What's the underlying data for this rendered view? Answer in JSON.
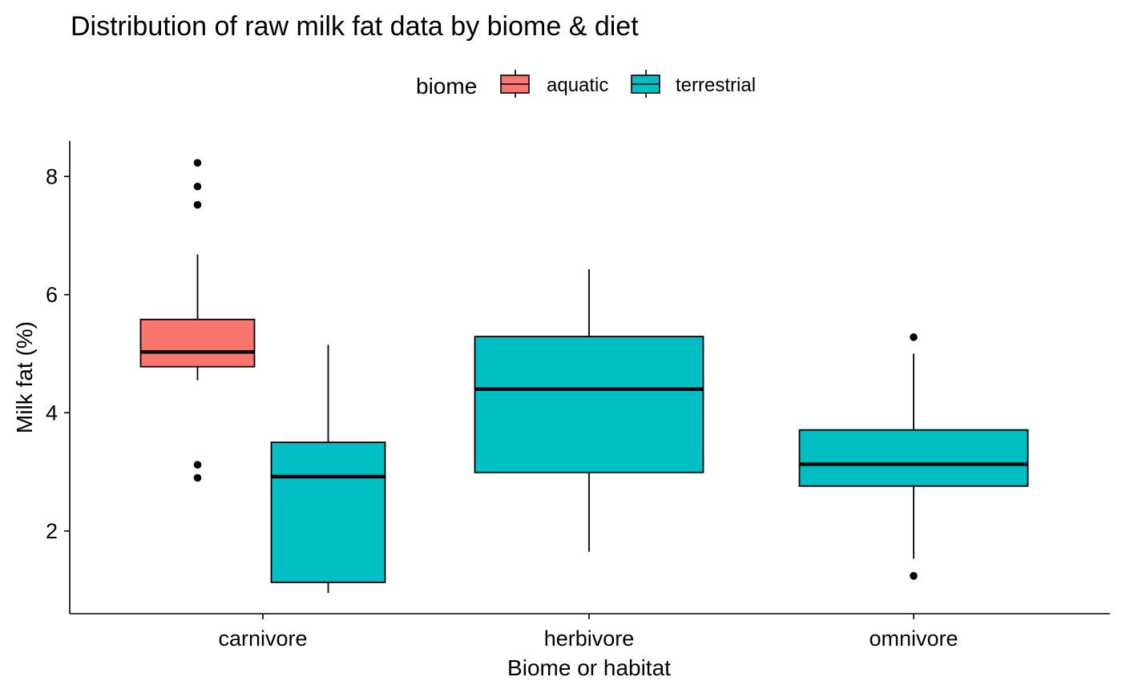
{
  "chart_data": {
    "type": "box",
    "title": "Distribution of raw milk fat data by biome & diet",
    "xlabel": "Biome or habitat",
    "ylabel": "Milk fat (%)",
    "ylim": [
      0.6,
      8.6
    ],
    "yticks": [
      2,
      4,
      6,
      8
    ],
    "categories": [
      "carnivore",
      "herbivore",
      "omnivore"
    ],
    "legend": {
      "title": "biome",
      "position": "top",
      "entries": [
        {
          "label": "aquatic",
          "color": "#F8766D"
        },
        {
          "label": "terrestrial",
          "color": "#00BFC4"
        }
      ]
    },
    "boxes": [
      {
        "category": "carnivore",
        "biome": "aquatic",
        "min": 4.55,
        "q1": 4.78,
        "median": 5.03,
        "q3": 5.58,
        "max": 6.68,
        "outliers": [
          8.23,
          7.83,
          7.52,
          3.12,
          2.9
        ]
      },
      {
        "category": "carnivore",
        "biome": "terrestrial",
        "min": 0.95,
        "q1": 1.13,
        "median": 2.92,
        "q3": 3.5,
        "max": 5.15,
        "outliers": []
      },
      {
        "category": "herbivore",
        "biome": "terrestrial",
        "min": 1.65,
        "q1": 2.99,
        "median": 4.4,
        "q3": 5.29,
        "max": 6.43,
        "outliers": []
      },
      {
        "category": "omnivore",
        "biome": "terrestrial",
        "min": 1.53,
        "q1": 2.76,
        "median": 3.13,
        "q3": 3.71,
        "max": 5.0,
        "outliers": [
          5.28,
          1.24
        ]
      }
    ],
    "grid": false
  }
}
